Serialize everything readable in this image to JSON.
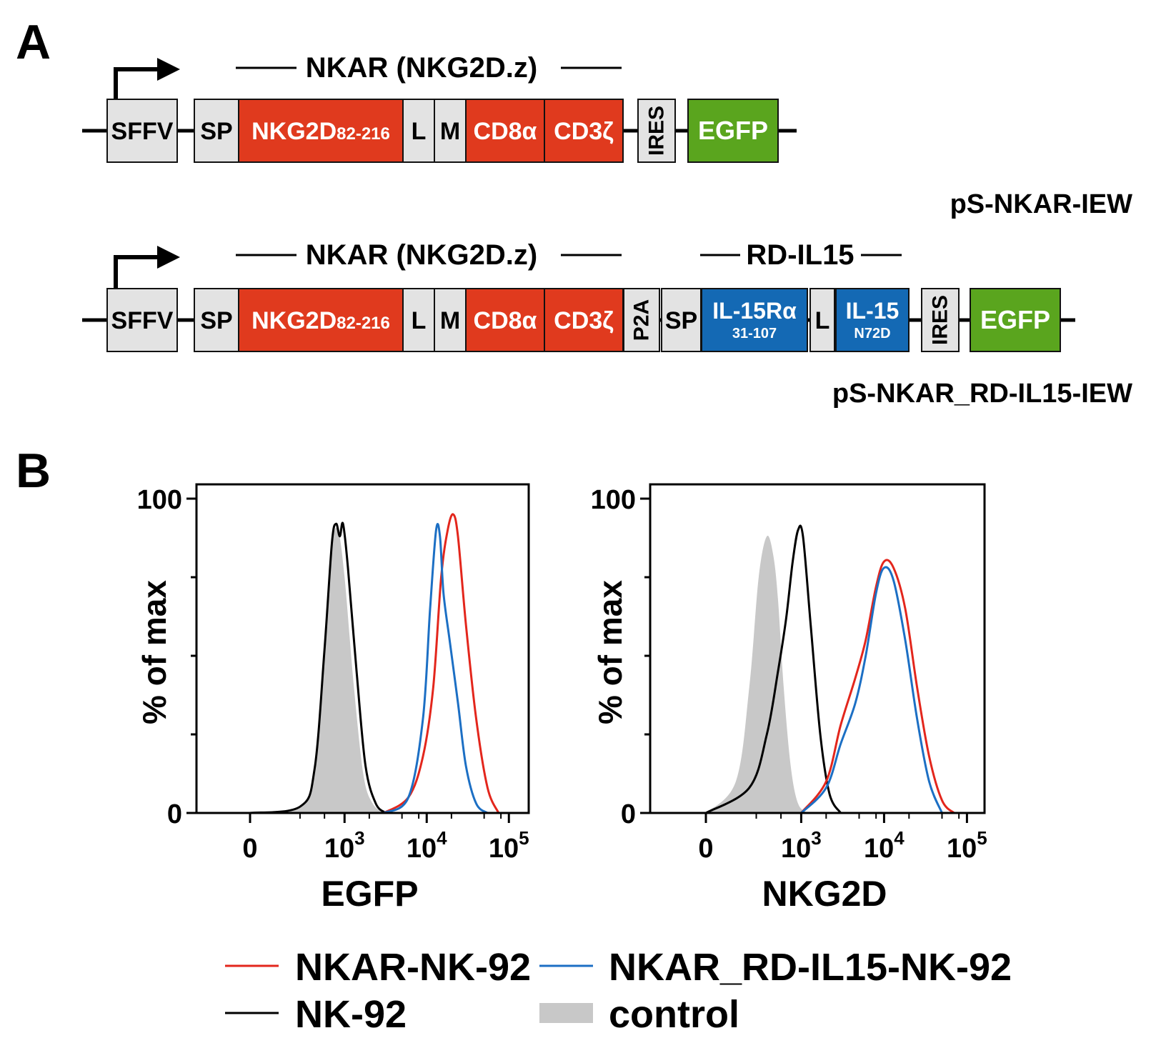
{
  "panel_a": {
    "label": "A",
    "construct1": {
      "name": "pS-NKAR-IEW",
      "bracket_label": "NKAR (NKG2D.z)",
      "boxes": [
        {
          "id": "sffv",
          "text": "SFFV",
          "fill": "gray"
        },
        {
          "id": "sp",
          "text": "SP",
          "fill": "gray"
        },
        {
          "id": "nkg2d",
          "text": "NKG2D",
          "sub": "82-216",
          "fill": "red"
        },
        {
          "id": "l",
          "text": "L",
          "fill": "gray"
        },
        {
          "id": "m",
          "text": "M",
          "fill": "gray"
        },
        {
          "id": "cd8a",
          "text": "CD8α",
          "fill": "red"
        },
        {
          "id": "cd3z",
          "text": "CD3ζ",
          "fill": "red"
        },
        {
          "id": "ires",
          "text": "IRES",
          "fill": "gray"
        },
        {
          "id": "egfp",
          "text": "EGFP",
          "fill": "green"
        }
      ]
    },
    "construct2": {
      "name": "pS-NKAR_RD-IL15-IEW",
      "bracket_label": "NKAR (NKG2D.z)",
      "bracket_label_2": "RD-IL15",
      "boxes": [
        {
          "id": "sffv",
          "text": "SFFV",
          "fill": "gray"
        },
        {
          "id": "sp",
          "text": "SP",
          "fill": "gray"
        },
        {
          "id": "nkg2d",
          "text": "NKG2D",
          "sub": "82-216",
          "fill": "red"
        },
        {
          "id": "l",
          "text": "L",
          "fill": "gray"
        },
        {
          "id": "m",
          "text": "M",
          "fill": "gray"
        },
        {
          "id": "cd8a",
          "text": "CD8α",
          "fill": "red"
        },
        {
          "id": "cd3z",
          "text": "CD3ζ",
          "fill": "red"
        },
        {
          "id": "p2a",
          "text": "P2A",
          "fill": "gray"
        },
        {
          "id": "sp2",
          "text": "SP",
          "fill": "gray"
        },
        {
          "id": "il15ra",
          "text": "IL-15Rα",
          "sub": "31-107",
          "fill": "blue"
        },
        {
          "id": "l2",
          "text": "L",
          "fill": "gray"
        },
        {
          "id": "il15",
          "text": "IL-15",
          "sub": "N72D",
          "fill": "blue"
        },
        {
          "id": "ires",
          "text": "IRES",
          "fill": "gray"
        },
        {
          "id": "egfp",
          "text": "EGFP",
          "fill": "green"
        }
      ]
    }
  },
  "panel_b": {
    "label": "B"
  },
  "colors": {
    "red": "#e03a1e",
    "blue": "#1469b4",
    "green": "#5aa51e",
    "gray": "#e3e3e3",
    "control_fill": "#c8c8c8",
    "nkar": "#e3261c",
    "nkar_rd": "#1c6fc4",
    "nk92": "#000000"
  },
  "chart_data": [
    {
      "type": "area",
      "xlabel": "EGFP",
      "ylabel": "% of max",
      "x_scale": "biexponential",
      "x_ticks": [
        {
          "label": "0"
        },
        {
          "label": "10",
          "sup": "3"
        },
        {
          "label": "10",
          "sup": "4"
        },
        {
          "label": "10",
          "sup": "5"
        }
      ],
      "y_ticks": [
        0,
        100
      ],
      "ylim": [
        0,
        100
      ],
      "series": [
        {
          "name": "control",
          "style": "filled",
          "x": [
            0,
            200,
            350,
            500,
            650,
            800,
            1000,
            1300,
            1700,
            2200,
            3000
          ],
          "y": [
            0,
            2,
            15,
            55,
            85,
            90,
            75,
            40,
            12,
            3,
            0
          ]
        },
        {
          "name": "NK-92",
          "style": "line",
          "x": [
            0,
            200,
            350,
            500,
            650,
            750,
            850,
            950,
            1100,
            1400,
            1800,
            2400,
            3200
          ],
          "y": [
            0,
            2,
            14,
            52,
            86,
            92,
            88,
            92,
            78,
            45,
            15,
            3,
            0
          ]
        },
        {
          "name": "NKAR-NK-92",
          "style": "line",
          "x": [
            3000,
            6000,
            9000,
            12000,
            15000,
            18000,
            21000,
            24000,
            30000,
            40000,
            55000,
            75000
          ],
          "y": [
            0,
            5,
            18,
            40,
            75,
            90,
            95,
            88,
            60,
            30,
            8,
            0
          ]
        },
        {
          "name": "NKAR_RD-IL15-NK-92",
          "style": "line",
          "x": [
            3000,
            6000,
            9000,
            11000,
            13000,
            14500,
            16000,
            19000,
            24000,
            30000,
            40000,
            55000
          ],
          "y": [
            0,
            5,
            30,
            65,
            90,
            88,
            70,
            55,
            35,
            15,
            3,
            0
          ]
        }
      ]
    },
    {
      "type": "area",
      "xlabel": "NKG2D",
      "ylabel": "% of max",
      "x_scale": "biexponential",
      "x_ticks": [
        {
          "label": "0"
        },
        {
          "label": "10",
          "sup": "3"
        },
        {
          "label": "10",
          "sup": "4"
        },
        {
          "label": "10",
          "sup": "5"
        }
      ],
      "y_ticks": [
        0,
        100
      ],
      "ylim": [
        0,
        100
      ],
      "series": [
        {
          "name": "control",
          "style": "filled",
          "x": [
            0,
            80,
            150,
            220,
            300,
            380,
            450,
            550,
            700,
            900,
            1200
          ],
          "y": [
            0,
            10,
            40,
            75,
            88,
            82,
            68,
            40,
            15,
            3,
            0
          ]
        },
        {
          "name": "NK-92",
          "style": "line",
          "x": [
            0,
            150,
            300,
            450,
            600,
            750,
            900,
            1050,
            1300,
            1700,
            2200,
            3000
          ],
          "y": [
            0,
            8,
            25,
            45,
            62,
            80,
            90,
            88,
            60,
            25,
            6,
            0
          ]
        },
        {
          "name": "NKAR-NK-92",
          "style": "line",
          "x": [
            1000,
            2000,
            3000,
            4500,
            6000,
            8000,
            10000,
            13000,
            18000,
            25000,
            35000,
            50000,
            70000
          ],
          "y": [
            0,
            10,
            28,
            43,
            55,
            72,
            80,
            78,
            65,
            40,
            18,
            4,
            0
          ]
        },
        {
          "name": "NKAR_RD-IL15-NK-92",
          "style": "line",
          "x": [
            1000,
            2000,
            3000,
            4500,
            6000,
            8000,
            10000,
            13000,
            18000,
            25000,
            35000,
            50000
          ],
          "y": [
            0,
            8,
            22,
            35,
            50,
            70,
            78,
            74,
            55,
            30,
            10,
            0
          ]
        }
      ]
    }
  ],
  "legend": [
    {
      "label": "NKAR-NK-92",
      "style": "line",
      "color_key": "nkar"
    },
    {
      "label": "NKAR_RD-IL15-NK-92",
      "style": "line",
      "color_key": "nkar_rd"
    },
    {
      "label": "NK-92",
      "style": "line",
      "color_key": "nk92"
    },
    {
      "label": "control",
      "style": "filled",
      "color_key": "control_fill"
    }
  ]
}
